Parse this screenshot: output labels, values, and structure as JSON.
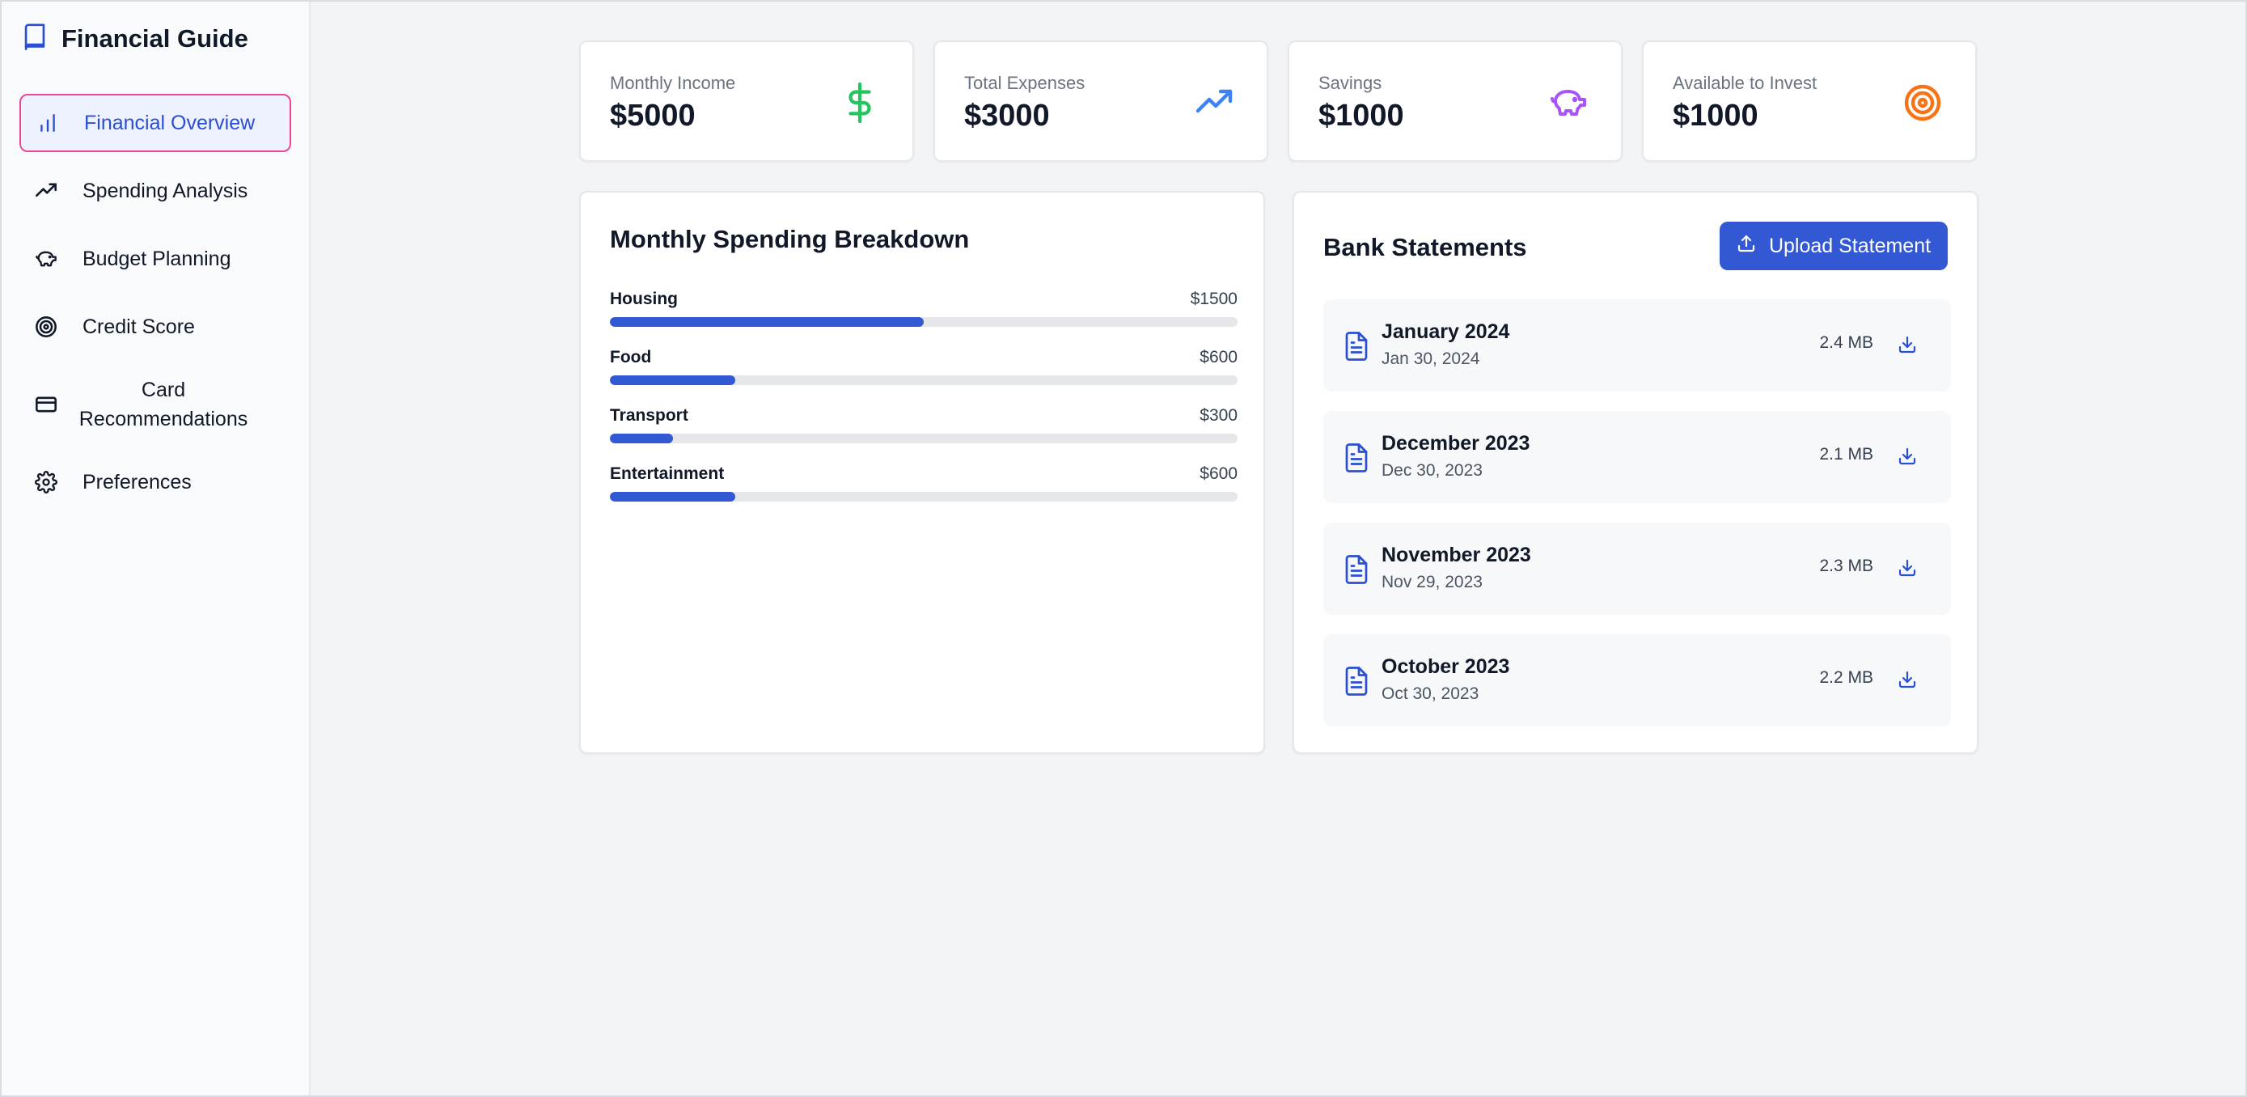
{
  "sidebar": {
    "title": "Financial Guide",
    "items": [
      {
        "label": "Financial Overview",
        "icon": "bar-chart-icon",
        "active": true
      },
      {
        "label": "Spending Analysis",
        "icon": "trending-up-icon"
      },
      {
        "label": "Budget Planning",
        "icon": "piggy-bank-icon"
      },
      {
        "label": "Credit Score",
        "icon": "target-icon"
      },
      {
        "label": "Card Recommendations",
        "icon": "credit-card-icon"
      },
      {
        "label": "Preferences",
        "icon": "gear-icon"
      }
    ]
  },
  "stats": [
    {
      "label": "Monthly Income",
      "value": "$5000",
      "icon": "dollar-icon",
      "color": "#22c55e"
    },
    {
      "label": "Total Expenses",
      "value": "$3000",
      "icon": "trending-up-icon",
      "color": "#3b82f6"
    },
    {
      "label": "Savings",
      "value": "$1000",
      "icon": "piggy-bank-icon",
      "color": "#a855f7"
    },
    {
      "label": "Available to Invest",
      "value": "$1000",
      "icon": "target-icon",
      "color": "#f97316"
    }
  ],
  "spending": {
    "title": "Monthly Spending Breakdown",
    "items": [
      {
        "name": "Housing",
        "amount": "$1500",
        "fraction": 0.5
      },
      {
        "name": "Food",
        "amount": "$600",
        "fraction": 0.2
      },
      {
        "name": "Transport",
        "amount": "$300",
        "fraction": 0.1
      },
      {
        "name": "Entertainment",
        "amount": "$600",
        "fraction": 0.2
      }
    ]
  },
  "statements": {
    "title": "Bank Statements",
    "upload_label": "Upload Statement",
    "items": [
      {
        "month": "January 2024",
        "date": "Jan 30, 2024",
        "size": "2.4 MB"
      },
      {
        "month": "December 2023",
        "date": "Dec 30, 2023",
        "size": "2.1 MB"
      },
      {
        "month": "November 2023",
        "date": "Nov 29, 2023",
        "size": "2.3 MB"
      },
      {
        "month": "October 2023",
        "date": "Oct 30, 2023",
        "size": "2.2 MB"
      }
    ]
  },
  "colors": {
    "accent": "#3358d4",
    "active_border": "#ec4899"
  }
}
